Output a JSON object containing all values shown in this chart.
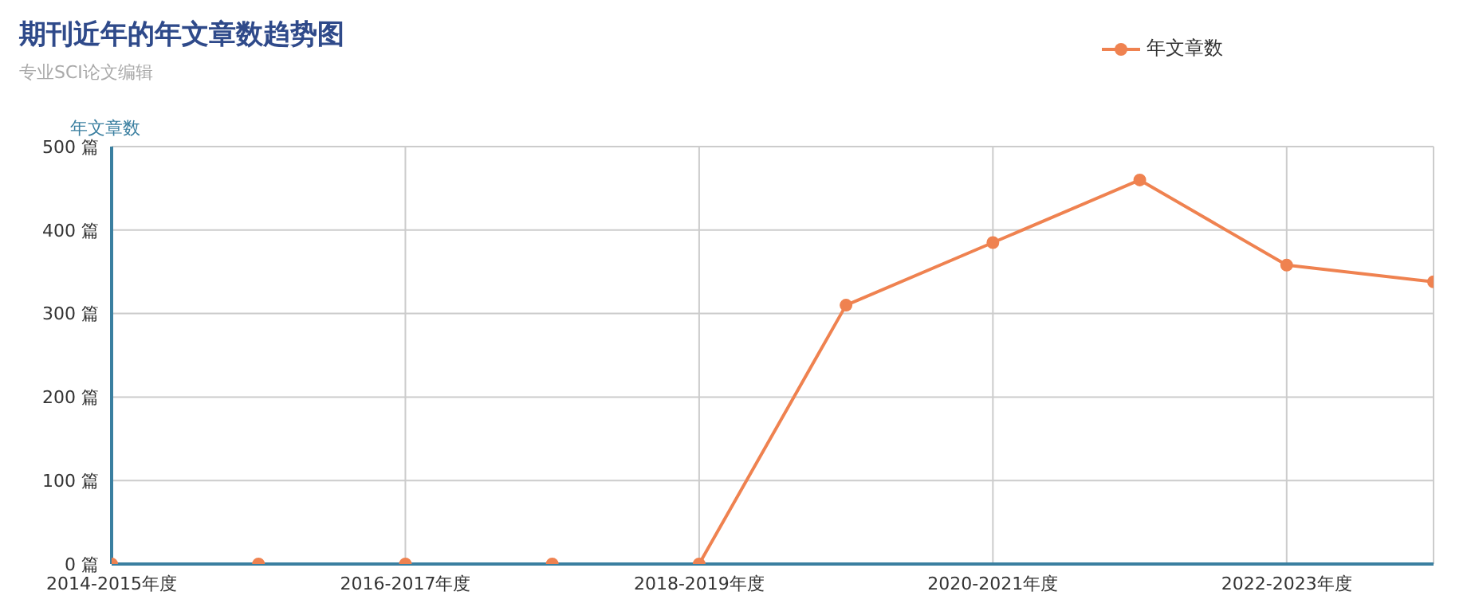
{
  "chart_data": {
    "type": "line",
    "title": "期刊近年的年文章数趋势图",
    "subtitle": "专业SCI论文编辑",
    "ylabel": "年文章数",
    "categories": [
      "2014-2015年度",
      null,
      "2016-2017年度",
      null,
      "2018-2019年度",
      null,
      "2020-2021年度",
      null,
      "2022-2023年度",
      null
    ],
    "series": [
      {
        "name": "年文章数",
        "color": "#ef8250",
        "values": [
          0,
          0,
          0,
          0,
          0,
          310,
          385,
          460,
          358,
          338
        ]
      }
    ],
    "ylim": [
      0,
      500
    ],
    "yticks": [
      {
        "value": 0,
        "label": "0 篇"
      },
      {
        "value": 100,
        "label": "100 篇"
      },
      {
        "value": 200,
        "label": "200 篇"
      },
      {
        "value": 300,
        "label": "300 篇"
      },
      {
        "value": 400,
        "label": "400 篇"
      },
      {
        "value": 500,
        "label": "500 篇"
      }
    ],
    "grid": true,
    "legend": "top right",
    "marker": "circle",
    "line_style": "solid"
  }
}
